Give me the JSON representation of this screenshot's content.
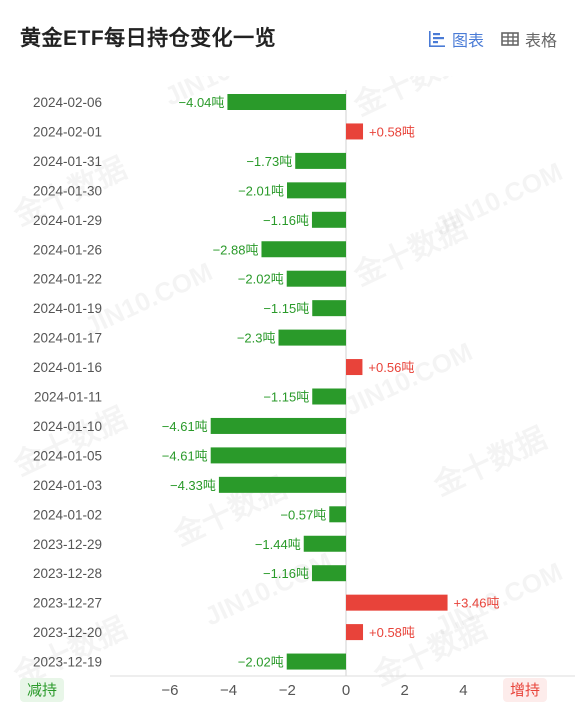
{
  "header": {
    "title": "黄金ETF每日持仓变化一览",
    "tab_chart_label": "图表",
    "tab_table_label": "表格"
  },
  "legend": {
    "decrease_label": "减持",
    "increase_label": "增持"
  },
  "watermark": {
    "text_cn": "金十数据",
    "text_en": "JIN10.COM"
  },
  "colors": {
    "decrease": "#2a9a2a",
    "increase": "#e8433a",
    "accent": "#4a7bd6"
  },
  "chart_data": {
    "type": "bar",
    "orientation": "horizontal",
    "unit": "吨",
    "categories": [
      "2024-02-06",
      "2024-02-01",
      "2024-01-31",
      "2024-01-30",
      "2024-01-29",
      "2024-01-26",
      "2024-01-22",
      "2024-01-19",
      "2024-01-17",
      "2024-01-16",
      "2024-01-11",
      "2024-01-10",
      "2024-01-05",
      "2024-01-03",
      "2024-01-02",
      "2023-12-29",
      "2023-12-28",
      "2023-12-27",
      "2023-12-20",
      "2023-12-19"
    ],
    "values": [
      -4.04,
      0.58,
      -1.73,
      -2.01,
      -1.16,
      -2.88,
      -2.02,
      -1.15,
      -2.3,
      0.56,
      -1.15,
      -4.61,
      -4.61,
      -4.33,
      -0.57,
      -1.44,
      -1.16,
      3.46,
      0.58,
      -2.02
    ],
    "data_labels": [
      "−4.04吨",
      "+0.58吨",
      "−1.73吨",
      "−2.01吨",
      "−1.16吨",
      "−2.88吨",
      "−2.02吨",
      "−1.15吨",
      "−2.3吨",
      "+0.56吨",
      "−1.15吨",
      "−4.61吨",
      "−4.61吨",
      "−4.33吨",
      "−0.57吨",
      "−1.44吨",
      "−1.16吨",
      "+3.46吨",
      "+0.58吨",
      "−2.02吨"
    ],
    "xlim": [
      -6,
      5
    ],
    "x_ticks": [
      -6,
      -4,
      -2,
      0,
      2,
      4
    ],
    "x_tick_labels": [
      "−6",
      "−4",
      "−2",
      "0",
      "2",
      "4"
    ],
    "grid": false
  }
}
